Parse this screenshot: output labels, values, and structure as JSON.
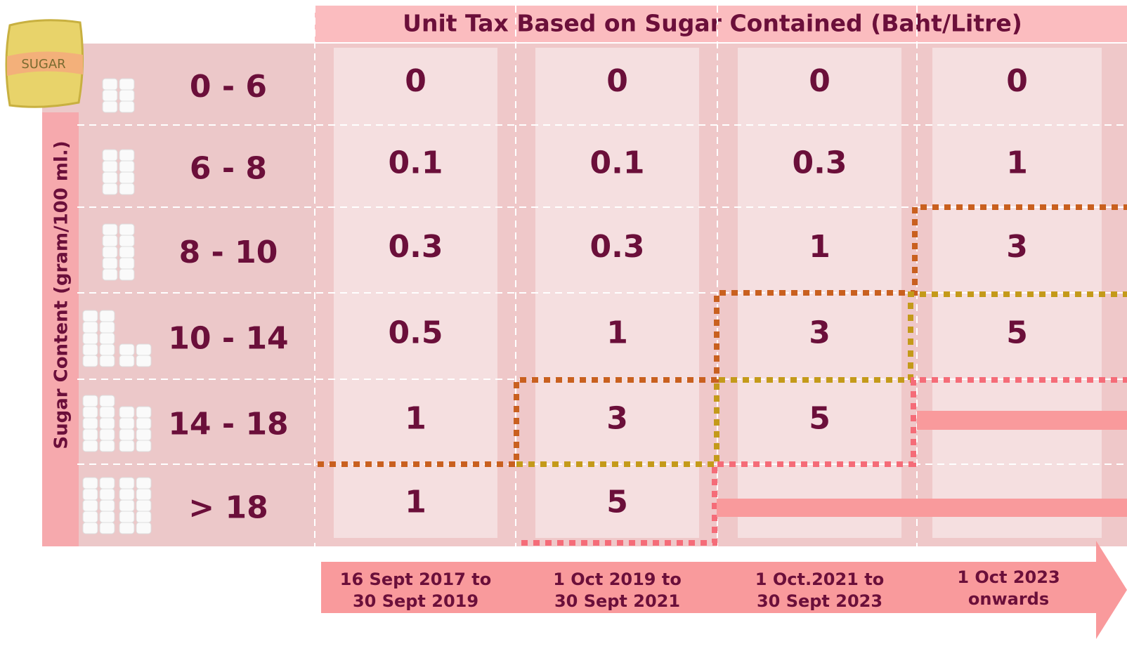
{
  "header": {
    "title": "Unit Tax Based on Sugar Contained (Baht/Litre)"
  },
  "bag_label": "SUGAR",
  "row_axis_label": "Sugar Content (gram/100 ml.)",
  "rows": [
    "0 - 6",
    "6 - 8",
    "8 - 10",
    "10 - 14",
    "14 - 18",
    "> 18"
  ],
  "periods": [
    [
      "16 Sept 2017 to",
      "30 Sept 2019"
    ],
    [
      "1 Oct 2019 to",
      "30 Sept 2021"
    ],
    [
      "1 Oct.2021 to",
      "30 Sept 2023"
    ],
    [
      "1 Oct 2023",
      "onwards"
    ]
  ],
  "table": {
    "columns": [
      [
        "0",
        "0.1",
        "0.3",
        "0.5",
        "1",
        "1"
      ],
      [
        "0",
        "0.1",
        "0.3",
        "1",
        "3",
        "5"
      ],
      [
        "0",
        "0.3",
        "1",
        "3",
        "5",
        null
      ],
      [
        "0",
        "1",
        "3",
        "5",
        null,
        null
      ]
    ]
  }
}
